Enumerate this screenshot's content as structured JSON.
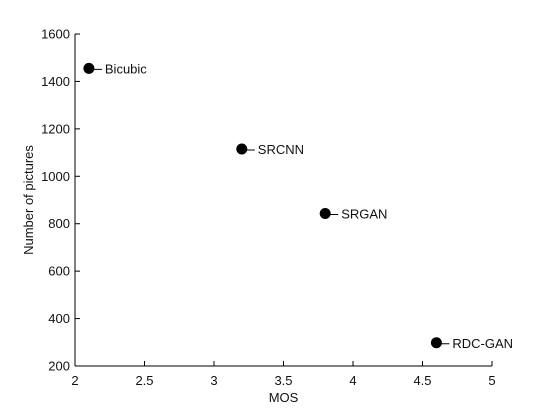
{
  "chart_data": {
    "type": "scatter",
    "title": "",
    "xlabel": "MOS",
    "ylabel": "Number of pictures",
    "xlim": [
      2,
      5
    ],
    "ylim": [
      200,
      1600
    ],
    "xticks": [
      2,
      2.5,
      3,
      3.5,
      4,
      4.5,
      5
    ],
    "yticks": [
      200,
      400,
      600,
      800,
      1000,
      1200,
      1400,
      1600
    ],
    "xtick_labels": [
      "2",
      "2.5",
      "3",
      "3.5",
      "4",
      "4.5",
      "5"
    ],
    "ytick_labels": [
      "200",
      "400",
      "600",
      "800",
      "1000",
      "1200",
      "1400",
      "1600"
    ],
    "grid": false,
    "legend": "none",
    "marker_color": "#000000",
    "points": [
      {
        "label": "Bicubic",
        "x": 2.1,
        "y": 1455
      },
      {
        "label": "SRCNN",
        "x": 3.2,
        "y": 1115
      },
      {
        "label": "SRGAN",
        "x": 3.8,
        "y": 843
      },
      {
        "label": "RDC-GAN",
        "x": 4.6,
        "y": 298
      }
    ]
  }
}
